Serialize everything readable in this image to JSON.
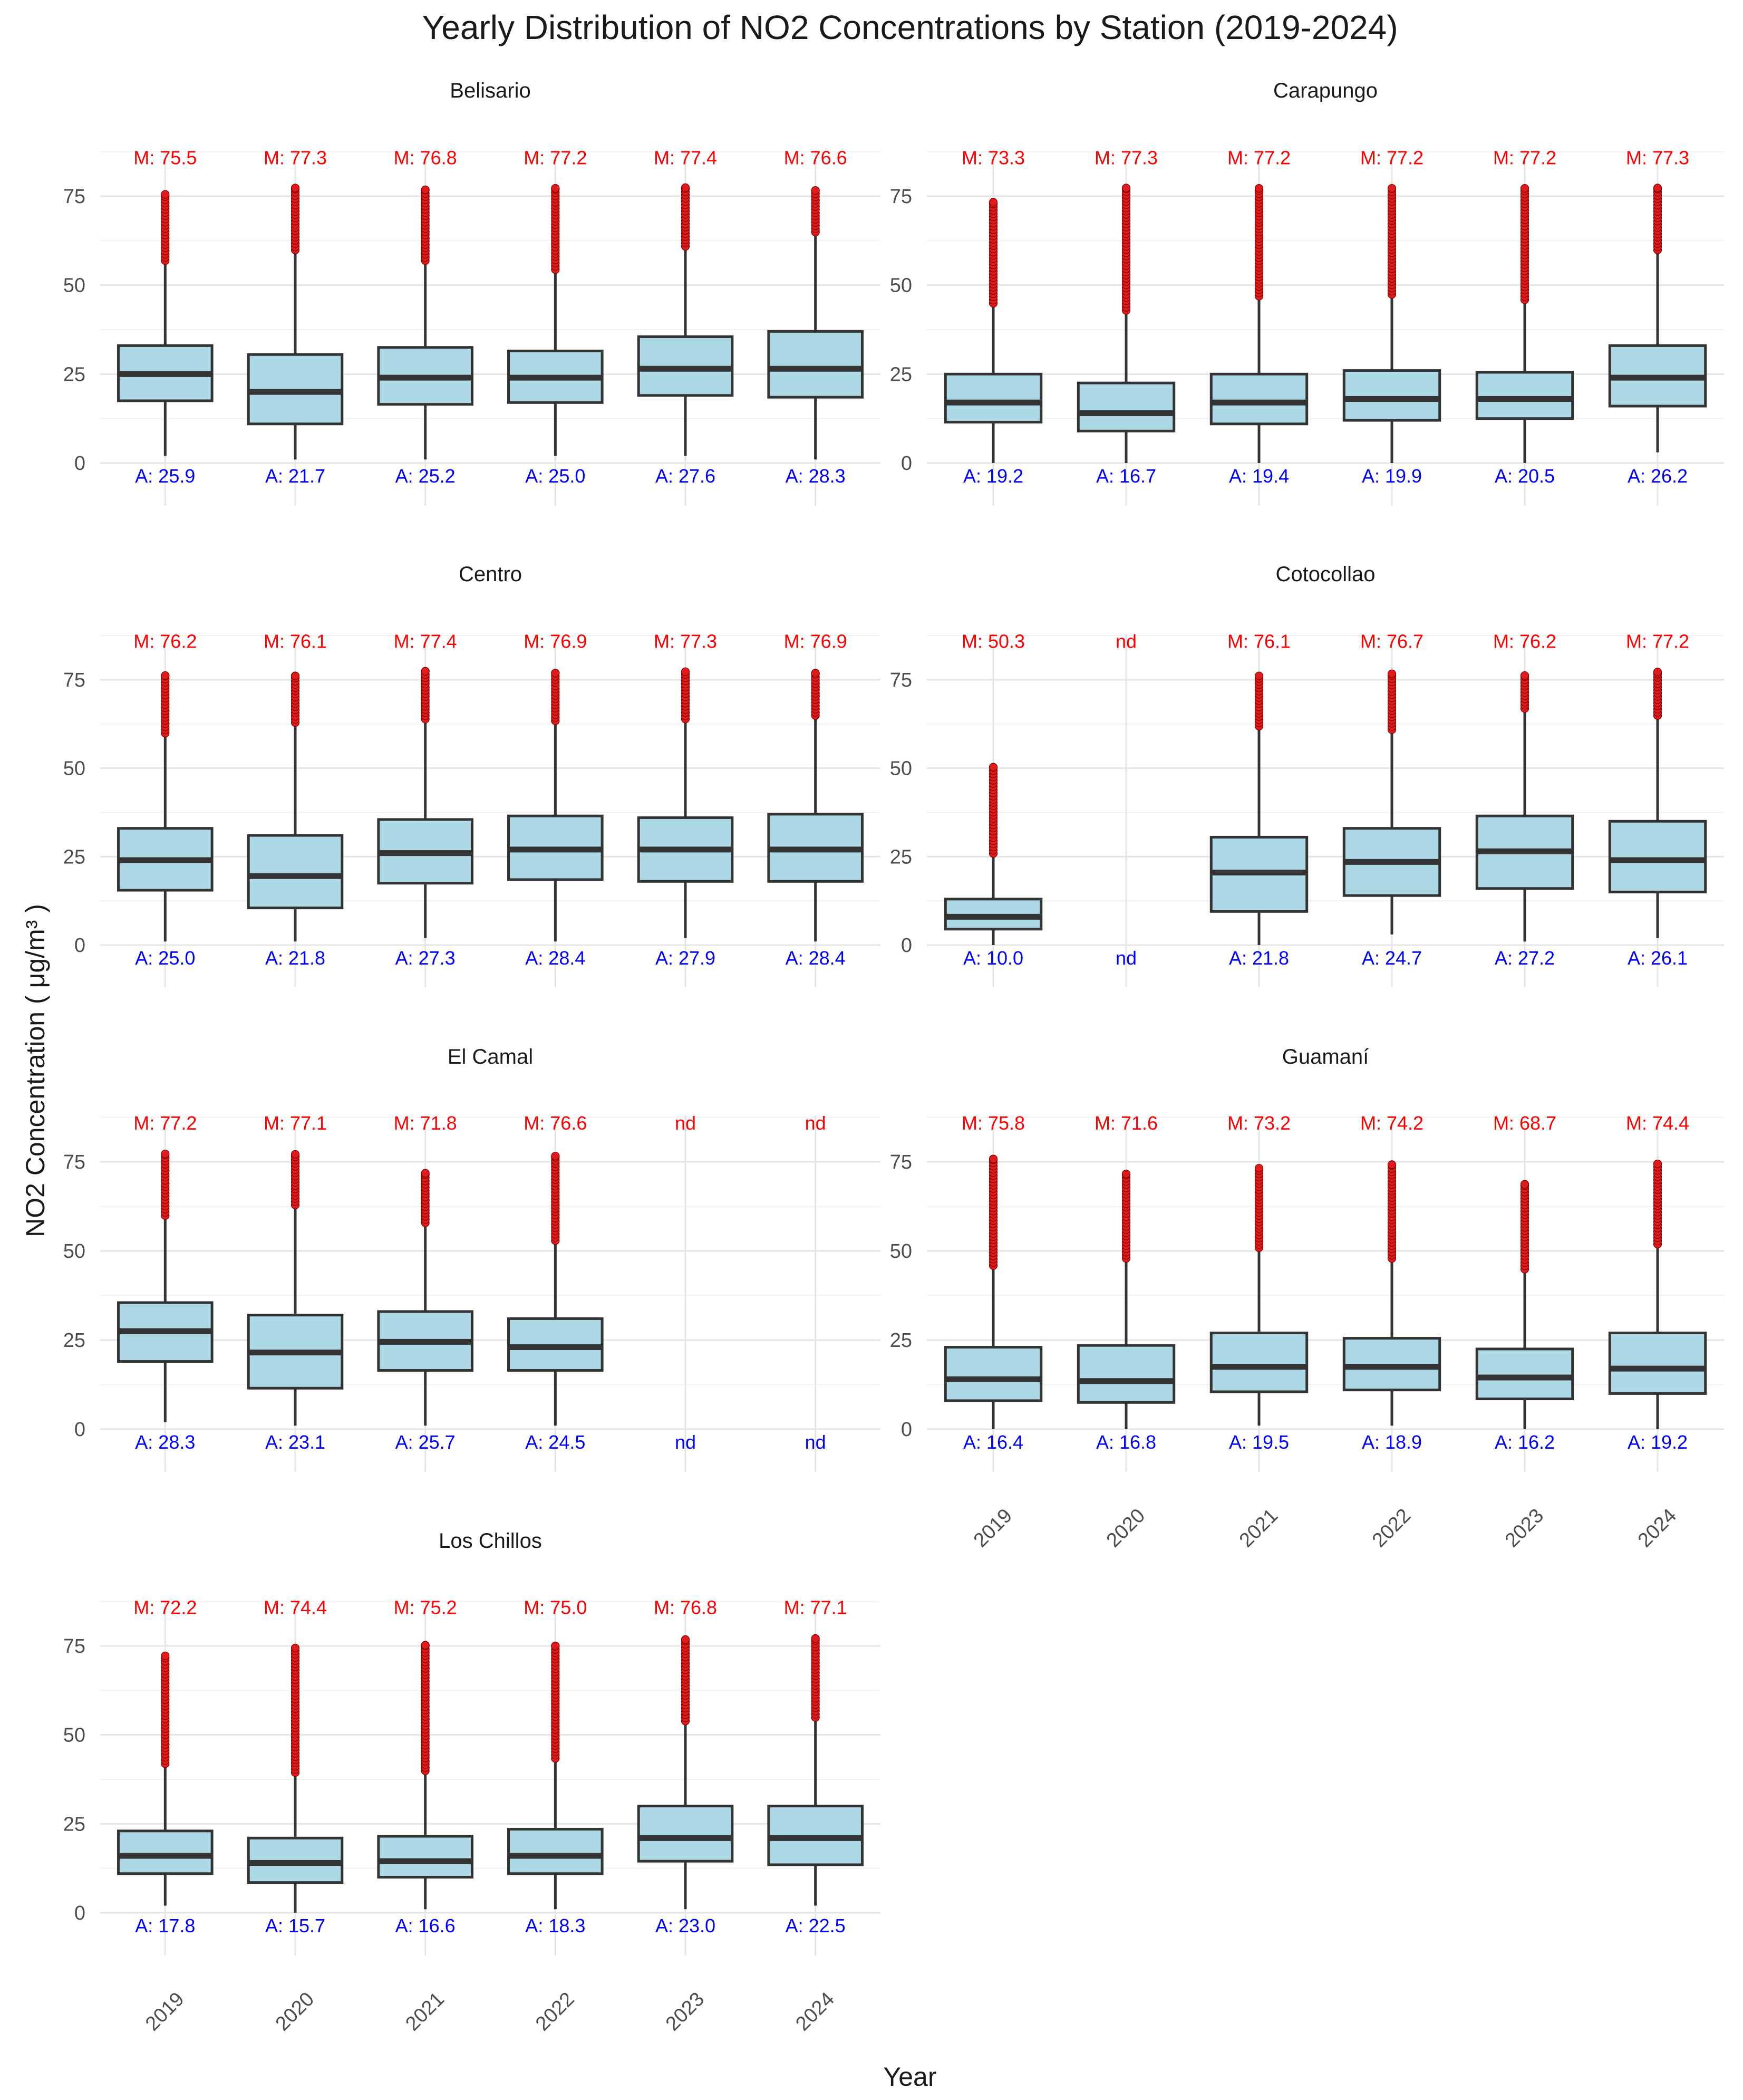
{
  "colors": {
    "box_fill": "#add8e6",
    "box_stroke": "#333333",
    "outlier": "#e31a1c",
    "max_label": "#ff0000",
    "mean_label": "#0000ff",
    "grid_major": "#e5e5e5",
    "grid_minor": "#f2f2f2"
  },
  "chart_data": {
    "type": "boxplot",
    "title": "Yearly Distribution of NO2 Concentrations by Station (2019-2024)",
    "xlabel": "Year",
    "ylabel": "NO2 Concentration ( μg/m³ )",
    "categories": [
      "2019",
      "2020",
      "2021",
      "2022",
      "2023",
      "2024"
    ],
    "yticks": [
      0,
      25,
      50,
      75
    ],
    "ylim": [
      -12,
      88
    ],
    "grid": true,
    "annotation_prefix": {
      "max": "M: ",
      "mean": "A: "
    },
    "missing_label": "nd",
    "panels": [
      {
        "name": "Belisario",
        "boxes": [
          {
            "year": "2019",
            "min": 2,
            "q1": 17.5,
            "median": 25,
            "q3": 33,
            "whisker_high": 56,
            "max": 75.5,
            "mean": 25.9
          },
          {
            "year": "2020",
            "min": 1,
            "q1": 11,
            "median": 20,
            "q3": 30.5,
            "whisker_high": 59,
            "max": 77.3,
            "mean": 21.7
          },
          {
            "year": "2021",
            "min": 1,
            "q1": 16.5,
            "median": 24,
            "q3": 32.5,
            "whisker_high": 56,
            "max": 76.8,
            "mean": 25.2
          },
          {
            "year": "2022",
            "min": 2,
            "q1": 17,
            "median": 24,
            "q3": 31.5,
            "whisker_high": 53.5,
            "max": 77.2,
            "mean": 25.0
          },
          {
            "year": "2023",
            "min": 2,
            "q1": 19,
            "median": 26.5,
            "q3": 35.5,
            "whisker_high": 60,
            "max": 77.4,
            "mean": 27.6
          },
          {
            "year": "2024",
            "min": 1,
            "q1": 18.5,
            "median": 26.5,
            "q3": 37,
            "whisker_high": 64,
            "max": 76.6,
            "mean": 28.3
          }
        ]
      },
      {
        "name": "Carapungo",
        "boxes": [
          {
            "year": "2019",
            "min": 0,
            "q1": 11.5,
            "median": 17,
            "q3": 25,
            "whisker_high": 44,
            "max": 73.3,
            "mean": 19.2
          },
          {
            "year": "2020",
            "min": 0,
            "q1": 9,
            "median": 14,
            "q3": 22.5,
            "whisker_high": 42,
            "max": 77.3,
            "mean": 16.7
          },
          {
            "year": "2021",
            "min": 0,
            "q1": 11,
            "median": 17,
            "q3": 25,
            "whisker_high": 46,
            "max": 77.2,
            "mean": 19.4
          },
          {
            "year": "2022",
            "min": 0,
            "q1": 12,
            "median": 18,
            "q3": 26,
            "whisker_high": 46.5,
            "max": 77.2,
            "mean": 19.9
          },
          {
            "year": "2023",
            "min": 0,
            "q1": 12.5,
            "median": 18,
            "q3": 25.5,
            "whisker_high": 45,
            "max": 77.2,
            "mean": 20.5
          },
          {
            "year": "2024",
            "min": 3,
            "q1": 16,
            "median": 24,
            "q3": 33,
            "whisker_high": 59,
            "max": 77.3,
            "mean": 26.2
          }
        ]
      },
      {
        "name": "Centro",
        "boxes": [
          {
            "year": "2019",
            "min": 1,
            "q1": 15.5,
            "median": 24,
            "q3": 33,
            "whisker_high": 59,
            "max": 76.2,
            "mean": 25.0
          },
          {
            "year": "2020",
            "min": 1,
            "q1": 10.5,
            "median": 19.5,
            "q3": 31,
            "whisker_high": 62,
            "max": 76.1,
            "mean": 21.8
          },
          {
            "year": "2021",
            "min": 2,
            "q1": 17.5,
            "median": 26,
            "q3": 35.5,
            "whisker_high": 63,
            "max": 77.4,
            "mean": 27.3
          },
          {
            "year": "2022",
            "min": 1,
            "q1": 18.5,
            "median": 27,
            "q3": 36.5,
            "whisker_high": 62.5,
            "max": 76.9,
            "mean": 28.4
          },
          {
            "year": "2023",
            "min": 2,
            "q1": 18,
            "median": 27,
            "q3": 36,
            "whisker_high": 63,
            "max": 77.3,
            "mean": 27.9
          },
          {
            "year": "2024",
            "min": 1,
            "q1": 18,
            "median": 27,
            "q3": 37,
            "whisker_high": 64,
            "max": 76.9,
            "mean": 28.4
          }
        ]
      },
      {
        "name": "Cotocollao",
        "boxes": [
          {
            "year": "2019",
            "min": 0,
            "q1": 4.5,
            "median": 8,
            "q3": 13,
            "whisker_high": 25,
            "max": 50.3,
            "mean": 10.0
          },
          {
            "year": "2020",
            "missing": true
          },
          {
            "year": "2021",
            "min": 0,
            "q1": 9.5,
            "median": 20.5,
            "q3": 30.5,
            "whisker_high": 61,
            "max": 76.1,
            "mean": 21.8
          },
          {
            "year": "2022",
            "min": 3,
            "q1": 14,
            "median": 23.5,
            "q3": 33,
            "whisker_high": 60,
            "max": 76.7,
            "mean": 24.7
          },
          {
            "year": "2023",
            "min": 1,
            "q1": 16,
            "median": 26.5,
            "q3": 36.5,
            "whisker_high": 66,
            "max": 76.2,
            "mean": 27.2
          },
          {
            "year": "2024",
            "min": 2,
            "q1": 15,
            "median": 24,
            "q3": 35,
            "whisker_high": 64,
            "max": 77.2,
            "mean": 26.1
          }
        ]
      },
      {
        "name": "El Camal",
        "boxes": [
          {
            "year": "2019",
            "min": 2,
            "q1": 19,
            "median": 27.5,
            "q3": 35.5,
            "whisker_high": 59,
            "max": 77.2,
            "mean": 28.3
          },
          {
            "year": "2020",
            "min": 1,
            "q1": 11.5,
            "median": 21.5,
            "q3": 32,
            "whisker_high": 62,
            "max": 77.1,
            "mean": 23.1
          },
          {
            "year": "2021",
            "min": 1,
            "q1": 16.5,
            "median": 24.5,
            "q3": 33,
            "whisker_high": 57,
            "max": 71.8,
            "mean": 25.7
          },
          {
            "year": "2022",
            "min": 1,
            "q1": 16.5,
            "median": 23,
            "q3": 31,
            "whisker_high": 52,
            "max": 76.6,
            "mean": 24.5
          },
          {
            "year": "2023",
            "missing": true
          },
          {
            "year": "2024",
            "missing": true
          }
        ]
      },
      {
        "name": "Guamaní",
        "boxes": [
          {
            "year": "2019",
            "min": 0,
            "q1": 8,
            "median": 14,
            "q3": 23,
            "whisker_high": 45,
            "max": 75.8,
            "mean": 16.4
          },
          {
            "year": "2020",
            "min": 0,
            "q1": 7.5,
            "median": 13.5,
            "q3": 23.5,
            "whisker_high": 47,
            "max": 71.6,
            "mean": 16.8
          },
          {
            "year": "2021",
            "min": 1,
            "q1": 10.5,
            "median": 17.5,
            "q3": 27,
            "whisker_high": 50,
            "max": 73.2,
            "mean": 19.5
          },
          {
            "year": "2022",
            "min": 1,
            "q1": 11,
            "median": 17.5,
            "q3": 25.5,
            "whisker_high": 47,
            "max": 74.2,
            "mean": 18.9
          },
          {
            "year": "2023",
            "min": 0,
            "q1": 8.5,
            "median": 14.5,
            "q3": 22.5,
            "whisker_high": 44,
            "max": 68.7,
            "mean": 16.2
          },
          {
            "year": "2024",
            "min": 0,
            "q1": 10,
            "median": 17,
            "q3": 27,
            "whisker_high": 51,
            "max": 74.4,
            "mean": 19.2
          }
        ]
      },
      {
        "name": "Los Chillos",
        "boxes": [
          {
            "year": "2019",
            "min": 2,
            "q1": 11,
            "median": 16,
            "q3": 23,
            "whisker_high": 41,
            "max": 72.2,
            "mean": 17.8
          },
          {
            "year": "2020",
            "min": 0,
            "q1": 8.5,
            "median": 14,
            "q3": 21,
            "whisker_high": 38.5,
            "max": 74.4,
            "mean": 15.7
          },
          {
            "year": "2021",
            "min": 1,
            "q1": 10,
            "median": 14.5,
            "q3": 21.5,
            "whisker_high": 39,
            "max": 75.2,
            "mean": 16.6
          },
          {
            "year": "2022",
            "min": 1,
            "q1": 11,
            "median": 16,
            "q3": 23.5,
            "whisker_high": 42.5,
            "max": 75.0,
            "mean": 18.3
          },
          {
            "year": "2023",
            "min": 1,
            "q1": 14.5,
            "median": 21,
            "q3": 30,
            "whisker_high": 53,
            "max": 76.8,
            "mean": 23.0
          },
          {
            "year": "2024",
            "min": 2,
            "q1": 13.5,
            "median": 21,
            "q3": 30,
            "whisker_high": 54,
            "max": 77.1,
            "mean": 22.5
          }
        ]
      }
    ]
  }
}
